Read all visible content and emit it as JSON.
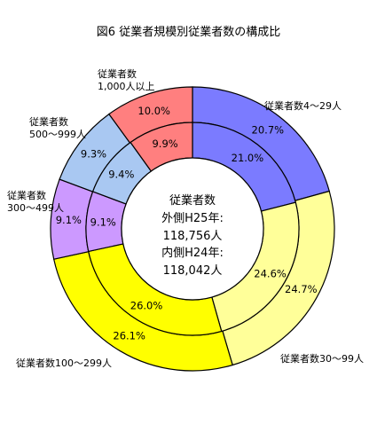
{
  "chart_data": {
    "type": "pie",
    "title": "図6 従業者規模別従業者数の構成比",
    "categories": [
      "従業者数4～29人",
      "従業者数30～99人",
      "従業者数100～299人",
      "従業者数300～499人",
      "従業者数500～999人",
      "従業者数1,000人以上"
    ],
    "category_labels": [
      [
        "従業者数4～29人"
      ],
      [
        "従業者数30～99人"
      ],
      [
        "従業者数100～299人"
      ],
      [
        "従業者数",
        "300～499人"
      ],
      [
        "従業者数",
        "500～999人"
      ],
      [
        "従業者数",
        "1,000人以上"
      ]
    ],
    "series": [
      {
        "ring": "outer",
        "values": [
          20.7,
          24.7,
          26.1,
          9.1,
          9.3,
          10.0
        ]
      },
      {
        "ring": "inner",
        "values": [
          21.0,
          24.6,
          26.0,
          9.1,
          9.4,
          9.9
        ]
      }
    ],
    "value_labels": {
      "outer": [
        "20.7%",
        "24.7%",
        "26.1%",
        "9.1%",
        "9.3%",
        "10.0%"
      ],
      "inner": [
        "21.0%",
        "24.6%",
        "26.0%",
        "9.1%",
        "9.4%",
        "9.9%"
      ]
    },
    "colors": [
      "#7b7bff",
      "#ffff99",
      "#ffff00",
      "#cc99ff",
      "#a9c8f2",
      "#ff7f7f"
    ],
    "center_text": [
      "従業者数",
      "外側H25年:",
      "118,756人",
      "内側H24年:",
      "118,042人"
    ]
  }
}
